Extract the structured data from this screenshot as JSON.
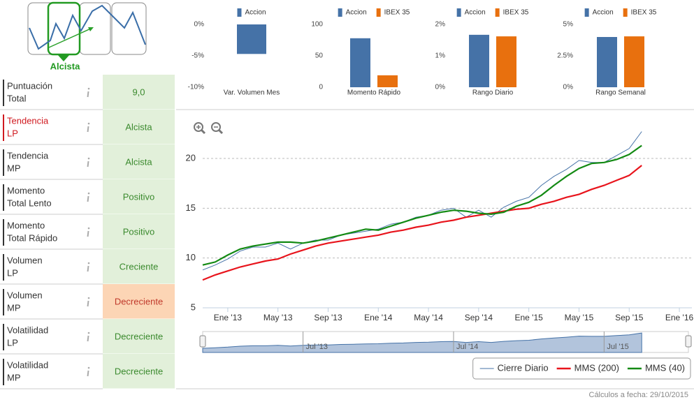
{
  "sidebar": {
    "signal": "Alcista",
    "rows": [
      {
        "label": [
          "Puntuación",
          "Total"
        ],
        "value": "9,0",
        "background": "#e2f0da",
        "color": "#3b8a2e"
      },
      {
        "label": [
          "Tendencia",
          "LP"
        ],
        "value": "Alcista",
        "background": "#e2f0da",
        "color": "#3b8a2e",
        "label_color": "#d0191f"
      },
      {
        "label": [
          "Tendencia",
          "MP"
        ],
        "value": "Alcista",
        "background": "#e2f0da",
        "color": "#3b8a2e"
      },
      {
        "label": [
          "Momento",
          "Total Lento"
        ],
        "value": "Positivo",
        "background": "#e2f0da",
        "color": "#3b8a2e"
      },
      {
        "label": [
          "Momento",
          "Total Rápido"
        ],
        "value": "Positivo",
        "background": "#e2f0da",
        "color": "#3b8a2e"
      },
      {
        "label": [
          "Volumen",
          "LP"
        ],
        "value": "Creciente",
        "background": "#e2f0da",
        "color": "#3b8a2e"
      },
      {
        "label": [
          "Volumen",
          "MP"
        ],
        "value": "Decreciente",
        "background": "#fcd5b5",
        "color": "#c0392b"
      },
      {
        "label": [
          "Volatilidad",
          "LP"
        ],
        "value": "Decreciente",
        "background": "#e2f0da",
        "color": "#3b8a2e"
      },
      {
        "label": [
          "Volatilidad",
          "MP"
        ],
        "value": "Decreciente",
        "background": "#e2f0da",
        "color": "#3b8a2e"
      }
    ]
  },
  "chart_data": [
    {
      "type": "bar",
      "categories": [
        "Var. Volumen Mes"
      ],
      "series": [
        {
          "name": "Accion",
          "color": "#4572a7",
          "values": [
            -4.7
          ]
        }
      ],
      "ylim": [
        -10,
        0
      ],
      "yticks": [
        {
          "value": 0,
          "label": "0%"
        },
        {
          "value": -5,
          "label": "-5%"
        },
        {
          "value": -10,
          "label": "-10%"
        }
      ]
    },
    {
      "type": "bar",
      "categories": [
        "Momento Rápido"
      ],
      "series": [
        {
          "name": "Accion",
          "color": "#4572a7",
          "values": [
            78
          ]
        },
        {
          "name": "IBEX 35",
          "color": "#e8700e",
          "values": [
            19
          ]
        }
      ],
      "ylim": [
        0,
        100
      ],
      "yticks": [
        0,
        50,
        100
      ]
    },
    {
      "type": "bar",
      "categories": [
        "Rango Diario"
      ],
      "series": [
        {
          "name": "Accion",
          "color": "#4572a7",
          "values": [
            1.67
          ]
        },
        {
          "name": "IBEX 35",
          "color": "#e8700e",
          "values": [
            1.62
          ]
        }
      ],
      "ylim": [
        0,
        2
      ],
      "yticks": [
        {
          "value": 0,
          "label": "0%"
        },
        {
          "value": 1,
          "label": "1%"
        },
        {
          "value": 2,
          "label": "2%"
        }
      ]
    },
    {
      "type": "bar",
      "categories": [
        "Rango Semanal"
      ],
      "series": [
        {
          "name": "Accion",
          "color": "#4572a7",
          "values": [
            4.0
          ]
        },
        {
          "name": "IBEX 35",
          "color": "#e8700e",
          "values": [
            4.05
          ]
        }
      ],
      "ylim": [
        0,
        5
      ],
      "yticks": [
        {
          "value": 0,
          "label": "0%"
        },
        {
          "value": 2.5,
          "label": "2.5%"
        },
        {
          "value": 5,
          "label": "5%"
        }
      ]
    },
    {
      "type": "line",
      "x": [
        "2012-11",
        "2012-12",
        "2013-01",
        "2013-02",
        "2013-03",
        "2013-04",
        "2013-05",
        "2013-06",
        "2013-07",
        "2013-08",
        "2013-09",
        "2013-10",
        "2013-11",
        "2013-12",
        "2014-01",
        "2014-02",
        "2014-03",
        "2014-04",
        "2014-05",
        "2014-06",
        "2014-07",
        "2014-08",
        "2014-09",
        "2014-10",
        "2014-11",
        "2014-12",
        "2015-01",
        "2015-02",
        "2015-03",
        "2015-04",
        "2015-05",
        "2015-06",
        "2015-07",
        "2015-08",
        "2015-09",
        "2015-10"
      ],
      "series": [
        {
          "name": "Cierre Diario",
          "color": "#4572a7",
          "values": [
            8.8,
            9.3,
            9.9,
            10.7,
            11.1,
            11.1,
            11.5,
            10.9,
            11.5,
            11.8,
            11.8,
            12.3,
            12.5,
            12.7,
            12.9,
            13.4,
            13.6,
            14.1,
            14.3,
            14.8,
            15.0,
            14.1,
            14.8,
            14.1,
            15.1,
            15.7,
            16.1,
            17.3,
            18.2,
            18.9,
            19.8,
            19.6,
            19.6,
            20.3,
            21.0,
            22.7
          ]
        },
        {
          "name": "MMS (200)",
          "color": "#e8141c",
          "values": [
            7.8,
            8.3,
            8.7,
            9.1,
            9.4,
            9.7,
            9.9,
            10.4,
            10.8,
            11.2,
            11.5,
            11.7,
            11.9,
            12.1,
            12.3,
            12.6,
            12.8,
            13.1,
            13.3,
            13.6,
            13.8,
            14.1,
            14.3,
            14.5,
            14.7,
            14.9,
            15.0,
            15.4,
            15.7,
            16.1,
            16.4,
            16.9,
            17.3,
            17.8,
            18.3,
            19.3
          ]
        },
        {
          "name": "MMS (40)",
          "color": "#138a13",
          "values": [
            9.3,
            9.6,
            10.3,
            10.9,
            11.2,
            11.4,
            11.6,
            11.6,
            11.5,
            11.7,
            12.0,
            12.3,
            12.6,
            12.9,
            12.8,
            13.2,
            13.6,
            14.0,
            14.3,
            14.6,
            14.8,
            14.7,
            14.5,
            14.4,
            14.6,
            15.2,
            15.6,
            16.3,
            17.3,
            18.2,
            19.0,
            19.5,
            19.6,
            19.9,
            20.4,
            21.3
          ]
        }
      ],
      "xlim": [
        "2012-11",
        "2016-02"
      ],
      "xticks": [
        {
          "value": "2013-01",
          "label": "Ene '13"
        },
        {
          "value": "2013-05",
          "label": "May '13"
        },
        {
          "value": "2013-09",
          "label": "Sep '13"
        },
        {
          "value": "2014-01",
          "label": "Ene '14"
        },
        {
          "value": "2014-05",
          "label": "May '14"
        },
        {
          "value": "2014-09",
          "label": "Sep '14"
        },
        {
          "value": "2015-01",
          "label": "Ene '15"
        },
        {
          "value": "2015-05",
          "label": "May '15"
        },
        {
          "value": "2015-09",
          "label": "Sep '15"
        },
        {
          "value": "2016-01",
          "label": "Ene '16"
        }
      ],
      "ylim": [
        5,
        24
      ],
      "yticks": [
        5,
        10,
        15,
        20
      ],
      "grid": true,
      "legend": "bottom-right",
      "navigator": {
        "xticks": [
          {
            "value": "2013-07",
            "label": "Jul '13"
          },
          {
            "value": "2014-07",
            "label": "Jul '14"
          },
          {
            "value": "2015-07",
            "label": "Jul '15"
          }
        ]
      }
    }
  ],
  "footer": "Cálculos a fecha: 29/10/2015"
}
